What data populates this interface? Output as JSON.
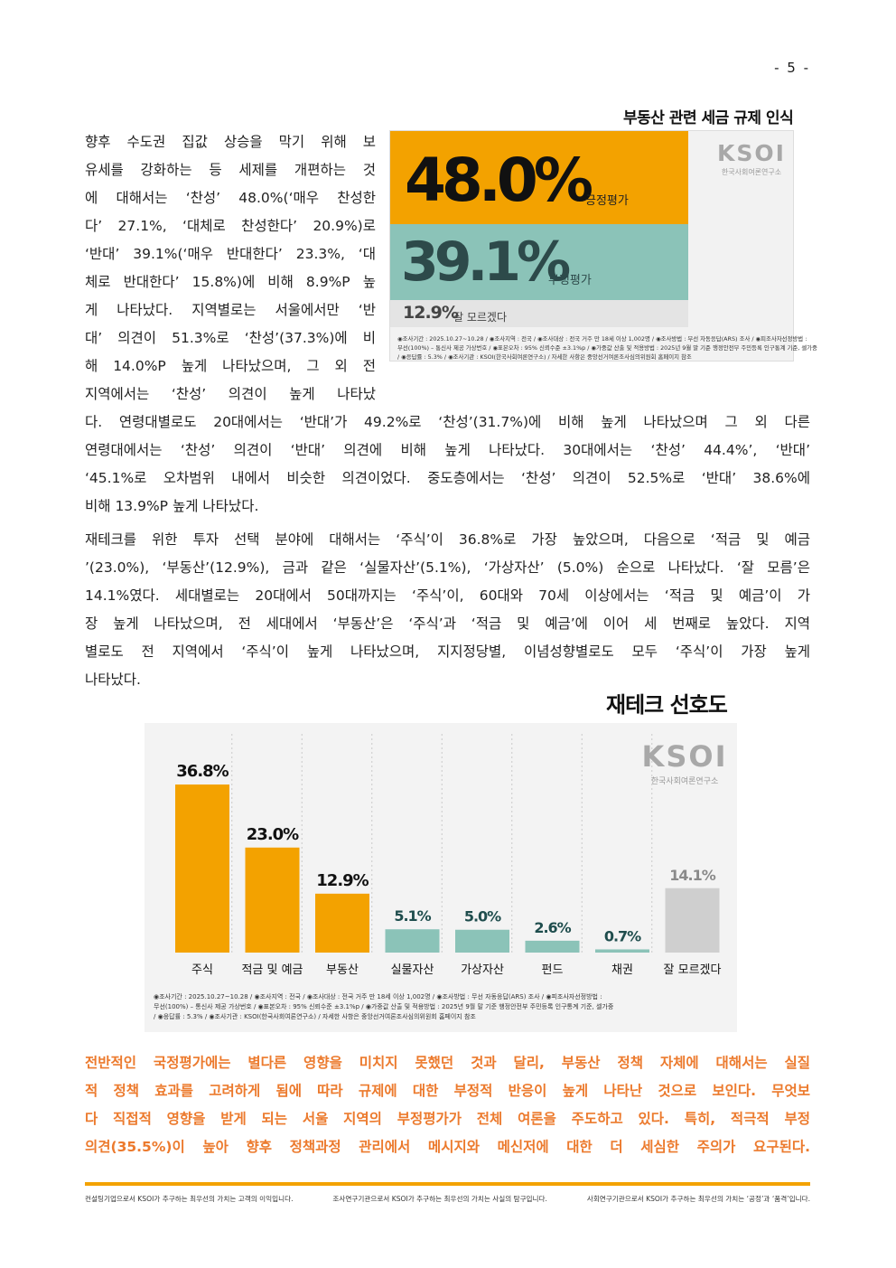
{
  "page_number": "- 5 -",
  "paragraph1_lines": [
    "향후 수도권 집값 상승을 막기 위해 보",
    "유세를 강화하는 등 세제를 개편하는 것",
    "에 대해서는 ‘찬성’ 48.0%(‘매우 찬성한",
    "다’ 27.1%, ‘대체로 찬성한다’ 20.9%)로",
    "‘반대’ 39.1%(‘매우 반대한다’ 23.3%, ‘대",
    "체로 반대한다’ 15.8%)에 비해 8.9%P 높",
    "게 나타났다. 지역별로는 서울에서만 ‘반",
    "대’ 의견이 51.3%로 ‘찬성’(37.3%)에 비",
    "해 14.0%P 높게 나타났으며, 그 외 전",
    "지역에서는 ‘찬성’ 의견이 높게 나타났",
    "다. 연령대별로도 20대에서는 ‘반대’가 49.2%로 ‘찬성’(31.7%)에 비해 높게 나타났으며 그 외 다른",
    "연령대에서는 ‘찬성’ 의견이 ‘반대’ 의견에 비해 높게 나타났다. 30대에서는 ‘찬성’ 44.4%’, ‘반대’",
    "‘45.1%로 오차범위 내에서 비슷한 의견이었다. 중도층에서는 ‘찬성’ 의견이 52.5%로 ‘반대’ 38.6%에",
    "비해 13.9%P 높게 나타났다."
  ],
  "paragraph2_lines": [
    "재테크를 위한 투자 선택 분야에 대해서는 ‘주식’이 36.8%로 가장 높았으며, 다음으로 ‘적금 및 예금",
    "’(23.0%), ‘부동산’(12.9%), 금과 같은 ‘실물자산’(5.1%), ‘가상자산’ (5.0%) 순으로 나타났다. ‘잘 모름’은",
    "14.1%였다. 세대별로는 20대에서 50대까지는 ‘주식’이, 60대와 70세 이상에서는 ‘적금 및 예금’이 가",
    "장 높게 나타났으며, 전 세대에서 ‘부동산’은 ‘주식’과 ‘적금 및 예금’에 이어 세 번째로 높았다. 지역",
    "별로도 전 지역에서 ‘주식’이 높게 나타났으며, 지지정당별, 이념성향별로도 모두 ‘주식’이 가장 높게",
    "나타났다."
  ],
  "figure1": {
    "title": "부동산 관련 세금 규제 인식",
    "positive_value": "48.0%",
    "positive_label": "긍정평가",
    "negative_value": "39.1%",
    "negative_label": "부정평가",
    "dontknow_value": "12.9%",
    "dontknow_label": "잘 모르겠다",
    "logo": "KSOI",
    "logo_sub": "한국사회여론연구소",
    "note_lines": [
      "◉조사기간 : 2025.10.27~10.28 / ◉조사지역 : 전국 / ◉조사대상 : 전국 거주 만 18세 이상 1,002명 / ◉조사방법 : 무선 자동응답(ARS) 조사 / ◉피조사자선정방법 :",
      "무선(100%) – 통신사 제공 가상번호 / ◉표본오차 : 95% 신뢰수준 ±3.1%p / ◉가중값 산출 및 적용방법 : 2025년 9월 말 기준 행정안전부 주민등록 인구통계 기준, 셀가중",
      "/ ◉응답률 : 5.3% / ◉조사기관 : KSOI(한국사회여론연구소) / 자세한 사항은 중앙선거여론조사심의위원회 홈페이지 참조"
    ],
    "colors": {
      "positive": "#f3a200",
      "negative": "#8bc3b8",
      "dontknow": "#e4e4e4"
    }
  },
  "figure2": {
    "title": "재테크 선호도",
    "logo": "KSOI",
    "logo_sub": "한국사회여론연구소",
    "note_lines": [
      "◉조사기간 : 2025.10.27~10.28 / ◉조사지역 : 전국 / ◉조사대상 : 전국 거주 만 18세 이상 1,002명 / ◉조사방법 : 무선 자동응답(ARS) 조사 / ◉피조사자선정방법 :",
      "무선(100%) – 통신사 제공 가상번호 / ◉표본오차 : 95% 신뢰수준 ±3.1%p / ◉가중값 산출 및 적용방법 : 2025년 9월 말 기준 행정안전부 주민등록 인구통계 기준, 셀가중",
      "/ ◉응답률 : 5.3% / ◉조사기관 : KSOI(한국사회여론연구소) / 자세한 사항은 중앙선거여론조사심의위원회 홈페이지 참조"
    ]
  },
  "chart_data": {
    "type": "bar",
    "title": "재테크 선호도",
    "categories": [
      "주식",
      "적금 및 예금",
      "부동산",
      "실물자산",
      "가상자산",
      "펀드",
      "채권",
      "잘 모르겠다"
    ],
    "values": [
      36.8,
      23.0,
      12.9,
      5.1,
      5.0,
      2.6,
      0.7,
      14.1
    ],
    "value_labels": [
      "36.8%",
      "23.0%",
      "12.9%",
      "5.1%",
      "5.0%",
      "2.6%",
      "0.7%",
      "14.1%"
    ],
    "colors": [
      "#f3a200",
      "#f3a200",
      "#f3a200",
      "#8bc3b8",
      "#8bc3b8",
      "#8bc3b8",
      "#8bc3b8",
      "#cfcfcf"
    ],
    "ylim": [
      0,
      40
    ],
    "grid": false
  },
  "highlight_lines": [
    "전반적인 국정평가에는 별다른 영향을 미치지 못했던 것과 달리, 부동산 정책 자체에 대해서는 실질",
    "적 정책 효과를 고려하게 됨에 따라 규제에 대한 부정적 반응이 높게 나타난 것으로 보인다. 무엇보",
    "다 직접적 영향을 받게 되는 서울 지역의 부정평가가 전체 여론을 주도하고 있다. 특히, 적극적 부정",
    "의견(35.5%)이 높아 향후 정책과정 관리에서 메시지와 메신저에 대한 더 세심한 주의가 요구된다."
  ],
  "footer": [
    "컨설팅기업으로서 KSOI가 추구하는 최우선의 가치는 고객의 이익입니다.",
    "조사연구기관으로서 KSOI가 추구하는 최우선의 가치는 사실의 탐구입니다.",
    "사회연구기관으로서 KSOI가 추구하는 최우선의 가치는 ‘공정’과 ‘품격’입니다."
  ]
}
